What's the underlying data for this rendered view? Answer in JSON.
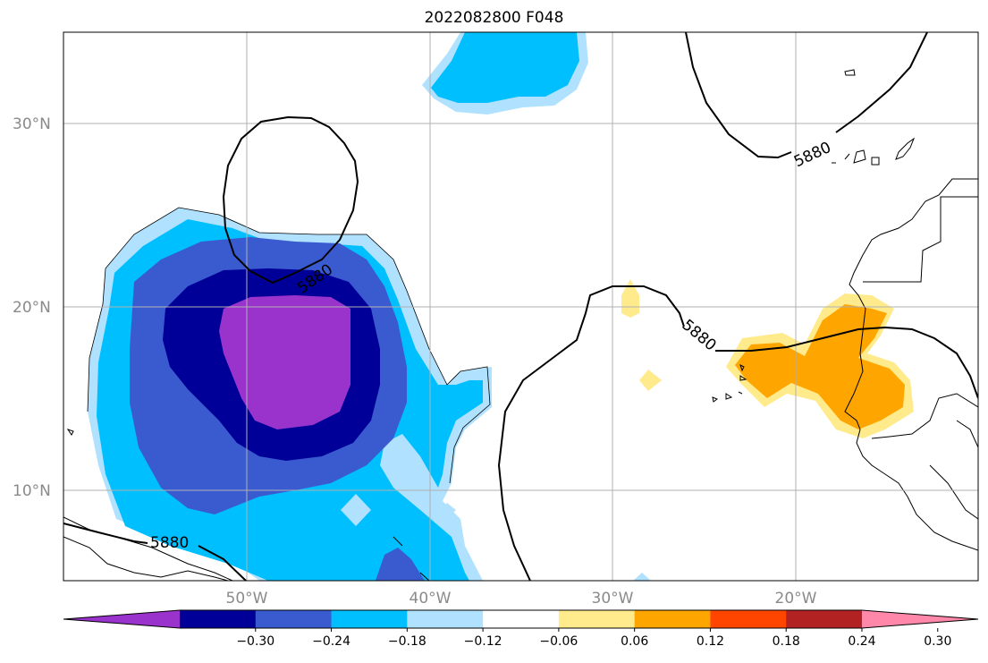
{
  "title": "2022082800 F048",
  "contour_value_label": "5880",
  "map": {
    "lon_range": [
      -60,
      -10
    ],
    "lat_range": [
      5,
      35
    ],
    "lat_ticks": [
      {
        "value": 10,
        "label": "10°N"
      },
      {
        "value": 20,
        "label": "20°N"
      },
      {
        "value": 30,
        "label": "30°N"
      }
    ],
    "lon_ticks": [
      {
        "value": -50,
        "label": "50°W"
      },
      {
        "value": -40,
        "label": "40°W"
      },
      {
        "value": -30,
        "label": "30°W"
      },
      {
        "value": -20,
        "label": "20°W"
      }
    ],
    "grid": true
  },
  "colorbar": {
    "colors": [
      "#9933cc",
      "#000099",
      "#3a5bcf",
      "#00bfff",
      "#b0e2ff",
      "#ffffff",
      "#ffeb8c",
      "#ffa500",
      "#ff4500",
      "#b22222",
      "#ff88aa"
    ],
    "tick_labels": [
      "−0.30",
      "−0.24",
      "−0.18",
      "−0.12",
      "−0.06",
      "0.06",
      "0.12",
      "0.18",
      "0.24",
      "0.30"
    ],
    "extend": "both"
  }
}
